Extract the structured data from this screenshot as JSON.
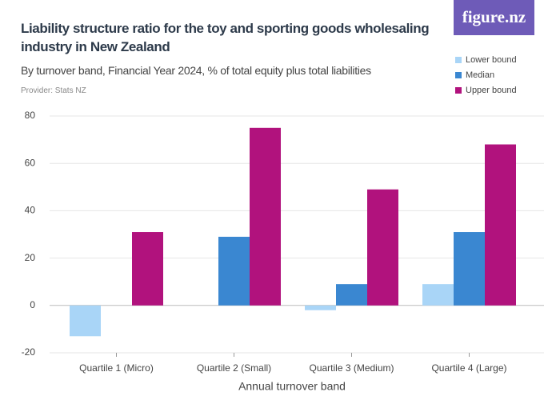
{
  "chart_data": {
    "type": "bar",
    "title": "Liability structure ratio for the toy and sporting goods wholesaling industry in New Zealand",
    "subtitle": "By turnover band, Financial Year 2024, % of total equity plus total liabilities",
    "provider": "Provider: Stats NZ",
    "logo": "figure.nz",
    "x_label": "Annual turnover band",
    "categories": [
      "Quartile 1 (Micro)",
      "Quartile 2 (Small)",
      "Quartile 3 (Medium)",
      "Quartile 4 (Large)"
    ],
    "series": [
      {
        "name": "Lower bound",
        "color": "#a9d5f7",
        "values": [
          -13,
          null,
          -2,
          9
        ]
      },
      {
        "name": "Median",
        "color": "#3a87d1",
        "values": [
          null,
          29,
          9,
          31
        ]
      },
      {
        "name": "Upper bound",
        "color": "#b1127d",
        "values": [
          31,
          75,
          49,
          68
        ]
      }
    ],
    "ylim": [
      -20,
      80
    ],
    "yticks": [
      -20,
      0,
      20,
      40,
      60,
      80
    ],
    "grid": true
  }
}
